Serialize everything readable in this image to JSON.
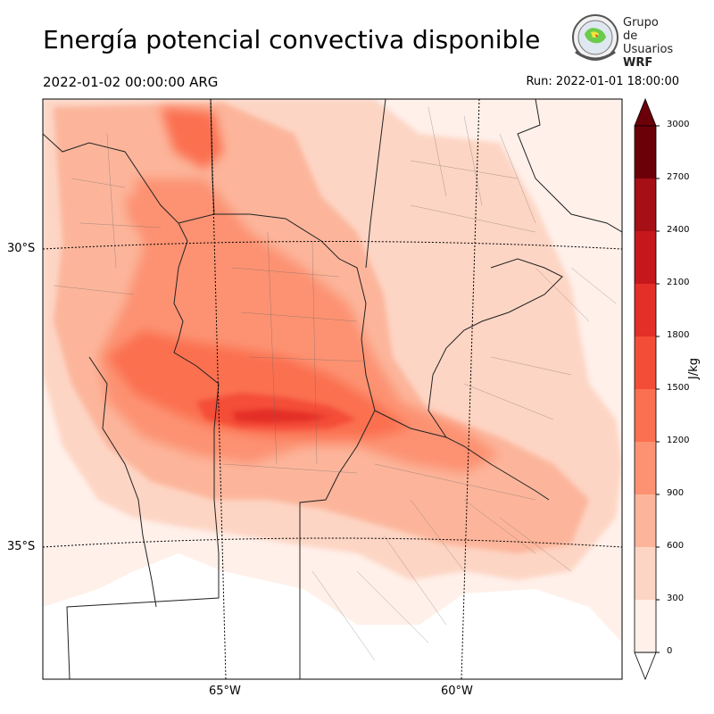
{
  "title": "Energía potencial convectiva disponible",
  "valid_time": "2022-01-02 00:00:00 ARG",
  "run_time": "Run: 2022-01-01 18:00:00",
  "logo": {
    "line1": "Grupo de",
    "line2": "Usuarios",
    "line3": "WRF"
  },
  "map": {
    "latitude_labels": [
      "30°S",
      "35°S"
    ],
    "longitude_labels": [
      "65°W",
      "60°W"
    ],
    "colormap": "Reds",
    "colors": [
      "#fff0ea",
      "#fdd5c4",
      "#fcb59b",
      "#fc9272",
      "#fb7050",
      "#f44d37",
      "#e32f27",
      "#c5171c",
      "#a50f15",
      "#6b0009"
    ]
  },
  "colorbar": {
    "unit": "J/kg",
    "ticks": [
      "0",
      "300",
      "600",
      "900",
      "1200",
      "1500",
      "1800",
      "2100",
      "2400",
      "2700",
      "3000"
    ],
    "extend": "both"
  }
}
